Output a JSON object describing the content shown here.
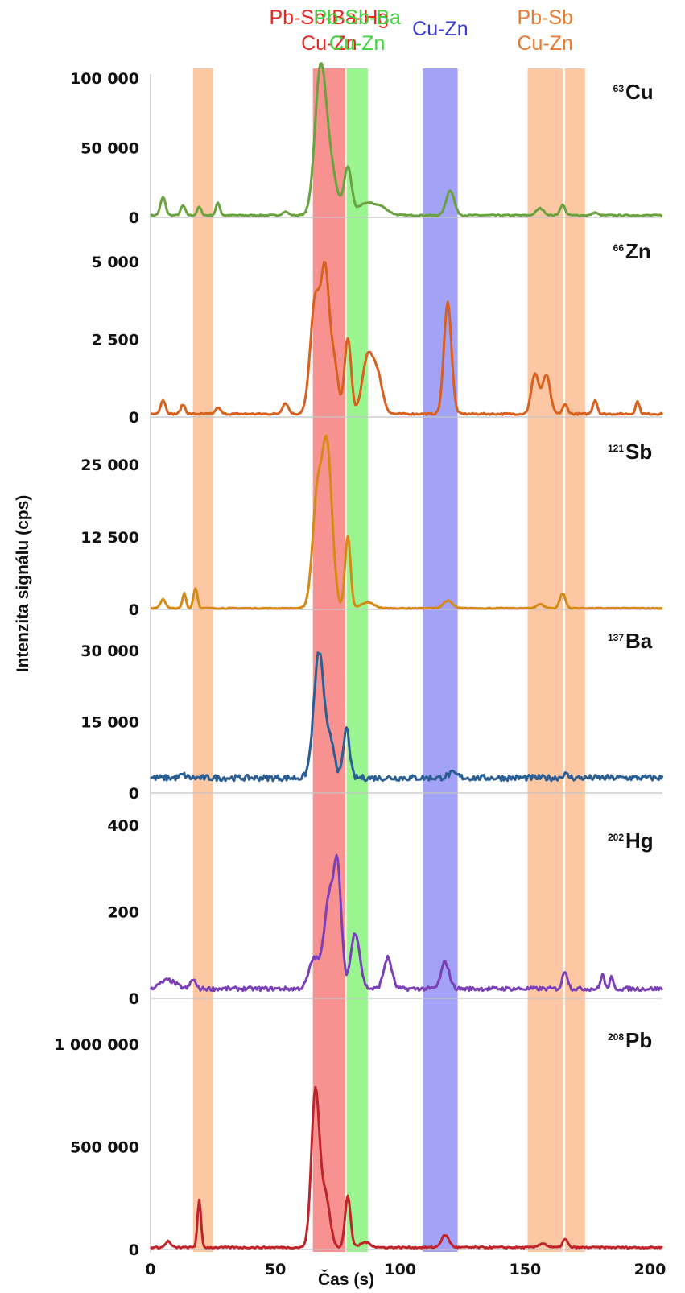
{
  "chart_data": {
    "type": "line",
    "xlabel": "Čas (s)",
    "ylabel": "Intenzita signálu (cps)",
    "xlim": [
      0,
      205
    ],
    "xticks": [
      0,
      50,
      100,
      150,
      200
    ],
    "xtick_labels": [
      "0",
      "50",
      "100",
      "150",
      "200"
    ],
    "zones": [
      {
        "label_lines": [
          "Pb-Sb-Ba-Hg",
          "Cu-Zn"
        ],
        "color": "#e8271f",
        "fill": "#f77f7d",
        "x_range": [
          65,
          78
        ],
        "label": true
      },
      {
        "label_lines": [
          "Pb-Sb-Ba",
          "Cu-Zn"
        ],
        "color": "#3ed43a",
        "fill": "#88f27d",
        "x_range": [
          78.5,
          87
        ],
        "label": true
      },
      {
        "label_lines": [
          "Cu-Zn"
        ],
        "color": "#3a3ad6",
        "fill": "#9292f5",
        "x_range": [
          109,
          123
        ],
        "label": true
      },
      {
        "label_lines": [
          "Pb-Sb",
          "Cu-Zn"
        ],
        "color": "#e87a2f",
        "fill": "#fbbd92",
        "x_range": [
          151,
          165
        ],
        "label": true
      },
      {
        "label_lines": [],
        "color": "#e87a2f",
        "fill": "#fbbd92",
        "x_range": [
          17,
          25
        ],
        "label": false
      },
      {
        "label_lines": [],
        "color": "#e87a2f",
        "fill": "#fbbd92",
        "x_range": [
          166,
          174
        ],
        "label": false
      }
    ],
    "panels": [
      {
        "mass": "63",
        "element": "Cu",
        "color": "#6aa23f",
        "ylim": [
          0,
          100000
        ],
        "yticks": [
          0,
          50000,
          100000
        ],
        "ytick_labels": [
          "0",
          "50 000",
          "100 000"
        ],
        "baseline": 1500,
        "peaks": [
          [
            5,
            13000,
            1.0
          ],
          [
            13,
            7000,
            0.9
          ],
          [
            19.5,
            6000,
            0.8
          ],
          [
            27,
            9000,
            0.8
          ],
          [
            54,
            2500,
            1.2
          ],
          [
            68,
            100000,
            2.2
          ],
          [
            72,
            32000,
            2.5
          ],
          [
            79,
            34000,
            1.5
          ],
          [
            86,
            8000,
            3.0
          ],
          [
            92,
            6000,
            3.0
          ],
          [
            120,
            18000,
            1.6
          ],
          [
            156,
            5000,
            1.5
          ],
          [
            165,
            7500,
            1.0
          ],
          [
            178,
            2000,
            1.0
          ]
        ]
      },
      {
        "mass": "66",
        "element": "Zn",
        "color": "#d9601d",
        "ylim": [
          0,
          5000
        ],
        "yticks": [
          0,
          2500,
          5000
        ],
        "ytick_labels": [
          "0",
          "2 500",
          "5 000"
        ],
        "baseline": 100,
        "peaks": [
          [
            5,
            450,
            1.0
          ],
          [
            13,
            300,
            0.9
          ],
          [
            27,
            200,
            1.0
          ],
          [
            54,
            350,
            1.2
          ],
          [
            66,
            3700,
            2.0
          ],
          [
            70,
            4200,
            1.6
          ],
          [
            73.5,
            1600,
            1.6
          ],
          [
            79,
            2450,
            1.3
          ],
          [
            87,
            1800,
            2.2
          ],
          [
            91,
            1100,
            2.0
          ],
          [
            119,
            3600,
            1.5
          ],
          [
            154,
            1300,
            1.5
          ],
          [
            158.5,
            1250,
            1.5
          ],
          [
            166,
            300,
            1.0
          ],
          [
            178,
            450,
            0.9
          ],
          [
            195,
            400,
            0.8
          ]
        ]
      },
      {
        "mass": "121",
        "element": "Sb",
        "color": "#d58a16",
        "ylim": [
          0,
          25000
        ],
        "yticks": [
          0,
          12500,
          25000
        ],
        "ytick_labels": [
          "0",
          "12 500",
          "25 000"
        ],
        "baseline": 200,
        "peaks": [
          [
            5,
            1600,
            1.0
          ],
          [
            13.5,
            2600,
            0.7
          ],
          [
            18,
            3500,
            0.8
          ],
          [
            67,
            21000,
            2.0
          ],
          [
            70.5,
            21500,
            1.6
          ],
          [
            72.5,
            8000,
            1.6
          ],
          [
            79,
            12500,
            1.1
          ],
          [
            87,
            1000,
            2.5
          ],
          [
            119,
            1300,
            1.8
          ],
          [
            156,
            700,
            1.5
          ],
          [
            165,
            2600,
            1.1
          ]
        ]
      },
      {
        "mass": "137",
        "element": "Ba",
        "color": "#2b5f94",
        "ylim": [
          0,
          30000
        ],
        "yticks": [
          0,
          15000,
          30000
        ],
        "ytick_labels": [
          "0",
          "15 000",
          "30 000"
        ],
        "baseline": 3200,
        "peaks": [
          [
            13,
            600,
            1.2
          ],
          [
            67.5,
            26500,
            2.1
          ],
          [
            72.5,
            6500,
            1.5
          ],
          [
            78.5,
            10500,
            1.2
          ],
          [
            121,
            900,
            2.0
          ],
          [
            166,
            700,
            1.2
          ]
        ]
      },
      {
        "mass": "202",
        "element": "Hg",
        "color": "#7b3fb8",
        "ylim": [
          0,
          400
        ],
        "yticks": [
          0,
          200,
          400
        ],
        "ytick_labels": [
          "0",
          "200",
          "400"
        ],
        "baseline": 22,
        "peaks": [
          [
            7,
            20,
            3.0
          ],
          [
            17,
            22,
            1.0
          ],
          [
            65.5,
            70,
            2.0
          ],
          [
            71.5,
            210,
            2.0
          ],
          [
            75,
            250,
            1.5
          ],
          [
            82,
            130,
            1.8
          ],
          [
            95,
            72,
            1.6
          ],
          [
            118,
            62,
            1.6
          ],
          [
            166,
            42,
            1.0
          ],
          [
            181,
            35,
            0.7
          ],
          [
            184.5,
            25,
            0.7
          ]
        ]
      },
      {
        "mass": "208",
        "element": "Pb",
        "color": "#c0242b",
        "ylim": [
          0,
          1100000
        ],
        "yticks": [
          0,
          500000,
          1000000
        ],
        "ytick_labels": [
          "0",
          "500 000",
          "1 000 000"
        ],
        "baseline": 10000,
        "peaks": [
          [
            7,
            30000,
            1.0
          ],
          [
            19.5,
            230000,
            0.7
          ],
          [
            66,
            760000,
            1.6
          ],
          [
            70,
            250000,
            1.8
          ],
          [
            79,
            250000,
            1.1
          ],
          [
            86,
            25000,
            2.0
          ],
          [
            118,
            60000,
            1.5
          ],
          [
            157,
            20000,
            1.5
          ],
          [
            166,
            40000,
            1.0
          ]
        ]
      }
    ]
  }
}
